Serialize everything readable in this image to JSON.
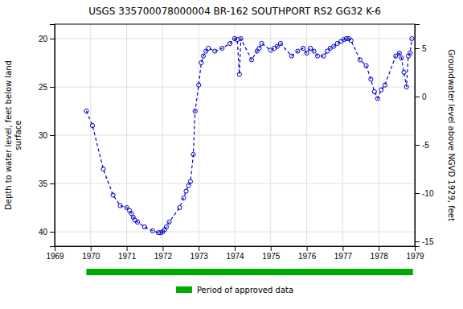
{
  "chart_data": {
    "type": "line",
    "title": "USGS 335700078000004 BR-162 SOUTHPORT RS2 GG32 K-6",
    "ylabel": "Depth to water level, feet below land\nsurface",
    "y2label": "Groundwater level above NGVD 1929, feet",
    "x": [
      1969.88,
      1970.05,
      1970.35,
      1970.62,
      1970.82,
      1971.0,
      1971.08,
      1971.13,
      1971.18,
      1971.23,
      1971.3,
      1971.5,
      1971.72,
      1971.88,
      1971.95,
      1972.0,
      1972.05,
      1972.1,
      1972.18,
      1972.47,
      1972.58,
      1972.65,
      1972.72,
      1972.77,
      1972.85,
      1972.9,
      1973.0,
      1973.07,
      1973.13,
      1973.2,
      1973.27,
      1973.45,
      1973.65,
      1973.87,
      1974.0,
      1974.07,
      1974.13,
      1974.17,
      1974.47,
      1974.62,
      1974.68,
      1974.75,
      1975.0,
      1975.1,
      1975.18,
      1975.27,
      1975.58,
      1975.75,
      1975.9,
      1976.0,
      1976.1,
      1976.2,
      1976.3,
      1976.47,
      1976.57,
      1976.65,
      1976.75,
      1976.85,
      1976.95,
      1977.03,
      1977.1,
      1977.17,
      1977.23,
      1977.48,
      1977.65,
      1977.78,
      1977.88,
      1977.97,
      1978.07,
      1978.17,
      1978.47,
      1978.57,
      1978.63,
      1978.7,
      1978.77,
      1978.82,
      1978.87,
      1978.92
    ],
    "series": [
      {
        "color": "#0000cc",
        "marker": "circle",
        "line_style": "dashed",
        "values": [
          27.5,
          29.0,
          33.5,
          36.2,
          37.3,
          37.5,
          37.8,
          38.1,
          38.5,
          38.8,
          39.0,
          39.5,
          39.9,
          40.1,
          40.1,
          40.0,
          39.8,
          39.5,
          39.0,
          37.5,
          36.5,
          35.8,
          35.2,
          34.8,
          32.0,
          27.5,
          24.8,
          22.5,
          21.8,
          21.3,
          21.0,
          21.3,
          21.0,
          20.5,
          20.0,
          20.1,
          23.7,
          20.0,
          22.2,
          21.3,
          21.0,
          20.5,
          21.2,
          21.0,
          20.8,
          20.5,
          21.8,
          21.3,
          21.0,
          21.5,
          21.0,
          21.3,
          21.8,
          21.8,
          21.3,
          21.0,
          20.8,
          20.5,
          20.3,
          20.1,
          20.0,
          20.0,
          20.2,
          22.2,
          22.8,
          24.2,
          25.5,
          26.2,
          25.3,
          24.8,
          21.8,
          21.5,
          22.0,
          23.5,
          25.0,
          21.8,
          21.5,
          20.0
        ]
      }
    ],
    "xlim": [
      1969,
      1979
    ],
    "xticks": [
      1969,
      1970,
      1971,
      1972,
      1973,
      1974,
      1975,
      1976,
      1977,
      1978,
      1979
    ],
    "ylim": [
      41.5,
      18.5
    ],
    "yticks": [
      20,
      25,
      30,
      35,
      40
    ],
    "y2lim": [
      -15.5,
      7.5
    ],
    "y2ticks": [
      5,
      0,
      -5,
      -10,
      -15
    ],
    "grid": true,
    "approved_period": {
      "name": "Period of approved data",
      "color": "#00aa00",
      "start": 1969.88,
      "end": 1978.95
    }
  }
}
